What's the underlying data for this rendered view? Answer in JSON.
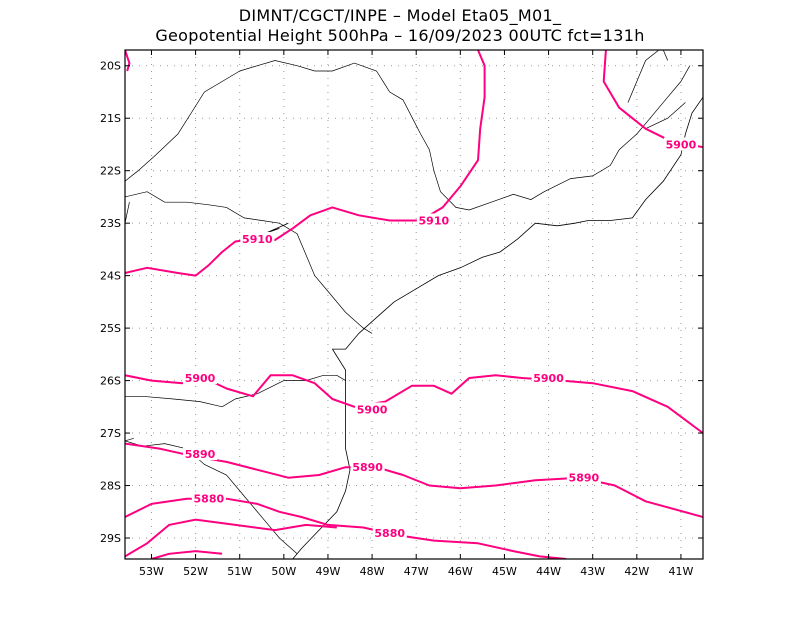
{
  "header": {
    "line1": "DIMNT/CGCT/INPE –   Model Eta05_M01_",
    "line2": "Geopotential Height 500hPa –  16/09/2023 00UTC fct=131h"
  },
  "colors": {
    "contour": "#ff0080",
    "coast": "#000000",
    "grid": "#999999"
  },
  "map": {
    "lon_range": [
      -53.6,
      -40.5
    ],
    "lat_range": [
      -29.4,
      -19.7
    ],
    "lat_ticks": [
      {
        "value": -20,
        "label": "20S"
      },
      {
        "value": -21,
        "label": "21S"
      },
      {
        "value": -22,
        "label": "22S"
      },
      {
        "value": -23,
        "label": "23S"
      },
      {
        "value": -24,
        "label": "24S"
      },
      {
        "value": -25,
        "label": "25S"
      },
      {
        "value": -26,
        "label": "26S"
      },
      {
        "value": -27,
        "label": "27S"
      },
      {
        "value": -28,
        "label": "28S"
      },
      {
        "value": -29,
        "label": "29S"
      }
    ],
    "lon_ticks": [
      {
        "value": -53,
        "label": "53W"
      },
      {
        "value": -52,
        "label": "52W"
      },
      {
        "value": -51,
        "label": "51W"
      },
      {
        "value": -50,
        "label": "50W"
      },
      {
        "value": -49,
        "label": "49W"
      },
      {
        "value": -48,
        "label": "48W"
      },
      {
        "value": -47,
        "label": "47W"
      },
      {
        "value": -46,
        "label": "46W"
      },
      {
        "value": -45,
        "label": "45W"
      },
      {
        "value": -44,
        "label": "44W"
      },
      {
        "value": -43,
        "label": "43W"
      },
      {
        "value": -42,
        "label": "42W"
      },
      {
        "value": -41,
        "label": "41W"
      }
    ]
  },
  "contours": [
    {
      "level": "5910",
      "label_text": "5910",
      "label_lon": -50.6,
      "label_lat": -23.3,
      "points": [
        [
          -53.6,
          -23.95
        ],
        [
          -53.1,
          -23.85
        ],
        [
          -52.4,
          -23.95
        ],
        [
          -52.0,
          -24.0
        ],
        [
          -51.7,
          -23.8
        ],
        [
          -51.4,
          -23.55
        ],
        [
          -51.1,
          -23.35
        ],
        [
          -50.5,
          -23.28
        ],
        [
          -50.2,
          -23.32
        ],
        [
          -49.8,
          -23.1
        ],
        [
          -49.4,
          -22.85
        ],
        [
          -48.9,
          -22.7
        ],
        [
          -48.3,
          -22.85
        ],
        [
          -47.6,
          -22.95
        ],
        [
          -46.9,
          -22.95
        ],
        [
          -46.4,
          -22.7
        ],
        [
          -46.0,
          -22.3
        ],
        [
          -45.6,
          -21.8
        ],
        [
          -45.55,
          -21.2
        ],
        [
          -45.45,
          -20.6
        ],
        [
          -45.45,
          -20.0
        ],
        [
          -45.6,
          -19.7
        ]
      ]
    },
    {
      "level": "5910",
      "label_text": "5910",
      "label_lon": -46.6,
      "label_lat": -22.95,
      "points": []
    },
    {
      "level": "5900",
      "label_text": "5900",
      "label_lon": -41.0,
      "label_lat": -21.5,
      "points": [
        [
          -42.7,
          -19.7
        ],
        [
          -42.75,
          -20.3
        ],
        [
          -42.4,
          -20.8
        ],
        [
          -41.8,
          -21.2
        ],
        [
          -41.2,
          -21.45
        ],
        [
          -40.5,
          -21.55
        ]
      ]
    },
    {
      "level": "5900",
      "label_text": "5900",
      "label_lon": -51.9,
      "label_lat": -25.95,
      "points": [
        [
          -53.6,
          -25.9
        ],
        [
          -53.0,
          -26.0
        ],
        [
          -52.3,
          -26.05
        ],
        [
          -51.8,
          -25.95
        ],
        [
          -51.3,
          -26.15
        ],
        [
          -50.7,
          -26.3
        ],
        [
          -50.3,
          -25.9
        ],
        [
          -49.8,
          -25.9
        ],
        [
          -49.3,
          -26.05
        ],
        [
          -48.9,
          -26.35
        ],
        [
          -48.4,
          -26.5
        ],
        [
          -47.7,
          -26.4
        ],
        [
          -47.1,
          -26.1
        ],
        [
          -46.6,
          -26.1
        ],
        [
          -46.2,
          -26.25
        ],
        [
          -45.8,
          -25.95
        ],
        [
          -45.2,
          -25.9
        ],
        [
          -44.6,
          -25.95
        ],
        [
          -43.7,
          -26.0
        ],
        [
          -43.0,
          -26.05
        ],
        [
          -42.1,
          -26.2
        ],
        [
          -41.3,
          -26.5
        ],
        [
          -40.5,
          -27.0
        ]
      ]
    },
    {
      "level": "5900",
      "label_text": "5900",
      "label_lon": -48.0,
      "label_lat": -26.55,
      "points": []
    },
    {
      "level": "5900",
      "label_text": "5900",
      "label_lon": -44.0,
      "label_lat": -25.95,
      "points": []
    },
    {
      "level": "5890",
      "label_text": "5890",
      "label_lon": -51.9,
      "label_lat": -27.4,
      "points": [
        [
          -53.6,
          -27.2
        ],
        [
          -52.8,
          -27.3
        ],
        [
          -52.0,
          -27.45
        ],
        [
          -51.3,
          -27.55
        ],
        [
          -50.6,
          -27.7
        ],
        [
          -49.9,
          -27.85
        ],
        [
          -49.2,
          -27.8
        ],
        [
          -48.6,
          -27.65
        ],
        [
          -47.9,
          -27.65
        ],
        [
          -47.3,
          -27.8
        ],
        [
          -46.7,
          -28.0
        ],
        [
          -46.0,
          -28.05
        ],
        [
          -45.2,
          -28.0
        ],
        [
          -44.3,
          -27.9
        ],
        [
          -43.3,
          -27.85
        ],
        [
          -42.5,
          -28.0
        ],
        [
          -41.8,
          -28.3
        ],
        [
          -40.5,
          -28.6
        ]
      ]
    },
    {
      "level": "5890",
      "label_text": "5890",
      "label_lon": -48.1,
      "label_lat": -27.65,
      "points": []
    },
    {
      "level": "5890",
      "label_text": "5890",
      "label_lon": -43.2,
      "label_lat": -27.85,
      "points": []
    },
    {
      "level": "5880",
      "label_text": "5880",
      "label_lon": -51.7,
      "label_lat": -28.25,
      "points": [
        [
          -53.6,
          -28.6
        ],
        [
          -53.0,
          -28.35
        ],
        [
          -52.2,
          -28.25
        ],
        [
          -51.3,
          -28.25
        ],
        [
          -50.6,
          -28.35
        ],
        [
          -50.1,
          -28.5
        ],
        [
          -49.6,
          -28.6
        ],
        [
          -49.0,
          -28.75
        ],
        [
          -48.2,
          -28.8
        ],
        [
          -47.4,
          -28.95
        ],
        [
          -46.6,
          -29.05
        ],
        [
          -45.6,
          -29.1
        ],
        [
          -44.8,
          -29.25
        ],
        [
          -44.2,
          -29.35
        ],
        [
          -43.6,
          -29.4
        ]
      ]
    },
    {
      "level": "5880",
      "label_text": "5880",
      "label_lon": -47.6,
      "label_lat": -28.9,
      "points": []
    }
  ],
  "extra_contours": [
    [
      [
        -53.6,
        -29.35
      ],
      [
        -53.1,
        -29.1
      ],
      [
        -52.6,
        -28.75
      ],
      [
        -52.0,
        -28.65
      ],
      [
        -51.1,
        -28.75
      ],
      [
        -50.2,
        -28.85
      ],
      [
        -49.5,
        -28.75
      ],
      [
        -48.8,
        -28.8
      ]
    ],
    [
      [
        -53.0,
        -29.4
      ],
      [
        -52.6,
        -29.3
      ],
      [
        -52.0,
        -29.25
      ],
      [
        -51.4,
        -29.3
      ]
    ],
    [
      [
        -53.6,
        -19.7
      ],
      [
        -53.5,
        -19.95
      ],
      [
        -53.55,
        -20.1
      ]
    ]
  ],
  "coastlines": [
    [
      [
        -49.9,
        -23.0
      ],
      [
        -50.3,
        -23.15
      ],
      [
        -50.6,
        -23.25
      ],
      [
        -50.1,
        -23.1
      ]
    ],
    [
      [
        -48.9,
        -25.4
      ],
      [
        -48.6,
        -25.4
      ],
      [
        -48.3,
        -25.1
      ],
      [
        -47.9,
        -24.8
      ],
      [
        -47.5,
        -24.5
      ],
      [
        -47.0,
        -24.25
      ],
      [
        -46.5,
        -24.0
      ],
      [
        -46.0,
        -23.85
      ],
      [
        -45.5,
        -23.65
      ],
      [
        -45.1,
        -23.55
      ],
      [
        -44.7,
        -23.3
      ],
      [
        -44.3,
        -23.0
      ],
      [
        -43.8,
        -23.05
      ],
      [
        -43.4,
        -23.0
      ],
      [
        -43.1,
        -22.95
      ],
      [
        -42.6,
        -22.95
      ],
      [
        -42.1,
        -22.9
      ],
      [
        -41.8,
        -22.55
      ],
      [
        -41.4,
        -22.2
      ],
      [
        -41.0,
        -21.7
      ],
      [
        -40.9,
        -21.3
      ],
      [
        -40.75,
        -20.9
      ],
      [
        -40.5,
        -20.6
      ]
    ],
    [
      [
        -48.9,
        -25.4
      ],
      [
        -48.6,
        -25.8
      ],
      [
        -48.6,
        -26.3
      ],
      [
        -48.6,
        -26.8
      ],
      [
        -48.6,
        -27.3
      ],
      [
        -48.5,
        -27.7
      ],
      [
        -48.6,
        -28.1
      ],
      [
        -48.8,
        -28.5
      ],
      [
        -49.2,
        -28.85
      ],
      [
        -49.6,
        -29.2
      ],
      [
        -49.8,
        -29.4
      ]
    ]
  ],
  "borders": [
    [
      [
        -53.6,
        -22.5
      ],
      [
        -53.1,
        -22.4
      ],
      [
        -52.7,
        -22.6
      ],
      [
        -52.2,
        -22.6
      ],
      [
        -51.7,
        -22.65
      ],
      [
        -51.3,
        -22.7
      ],
      [
        -50.9,
        -22.9
      ],
      [
        -50.5,
        -22.95
      ],
      [
        -50.1,
        -23.0
      ],
      [
        -49.7,
        -23.2
      ],
      [
        -49.5,
        -23.6
      ],
      [
        -49.3,
        -24.0
      ],
      [
        -49.0,
        -24.3
      ],
      [
        -48.6,
        -24.7
      ],
      [
        -48.2,
        -25.0
      ],
      [
        -48.0,
        -25.1
      ]
    ],
    [
      [
        -53.6,
        -23.0
      ],
      [
        -53.5,
        -22.6
      ]
    ],
    [
      [
        -51.0,
        -20.1
      ],
      [
        -50.6,
        -20.0
      ],
      [
        -50.2,
        -19.9
      ],
      [
        -49.7,
        -20.0
      ],
      [
        -49.3,
        -20.1
      ],
      [
        -48.9,
        -20.1
      ],
      [
        -48.4,
        -19.95
      ],
      [
        -47.9,
        -20.1
      ],
      [
        -47.6,
        -20.5
      ],
      [
        -47.3,
        -20.65
      ],
      [
        -46.9,
        -21.3
      ],
      [
        -46.7,
        -21.6
      ],
      [
        -46.6,
        -22.0
      ],
      [
        -46.45,
        -22.4
      ],
      [
        -46.1,
        -22.7
      ],
      [
        -45.8,
        -22.75
      ],
      [
        -45.3,
        -22.6
      ],
      [
        -44.8,
        -22.45
      ],
      [
        -44.4,
        -22.55
      ],
      [
        -44.1,
        -22.4
      ],
      [
        -43.5,
        -22.15
      ],
      [
        -43.0,
        -22.1
      ],
      [
        -42.6,
        -21.9
      ],
      [
        -42.4,
        -21.6
      ],
      [
        -42.0,
        -21.3
      ],
      [
        -41.7,
        -21.0
      ],
      [
        -41.3,
        -20.6
      ],
      [
        -41.0,
        -20.3
      ],
      [
        -40.8,
        -20.0
      ]
    ],
    [
      [
        -51.0,
        -20.1
      ],
      [
        -51.4,
        -20.3
      ],
      [
        -51.8,
        -20.5
      ],
      [
        -52.1,
        -20.9
      ],
      [
        -52.4,
        -21.3
      ],
      [
        -52.9,
        -21.7
      ],
      [
        -53.3,
        -22.0
      ],
      [
        -53.6,
        -22.2
      ]
    ],
    [
      [
        -53.6,
        -26.3
      ],
      [
        -53.2,
        -26.3
      ],
      [
        -52.5,
        -26.35
      ],
      [
        -51.9,
        -26.4
      ],
      [
        -51.4,
        -26.5
      ],
      [
        -51.1,
        -26.35
      ],
      [
        -50.6,
        -26.25
      ],
      [
        -50.0,
        -26.0
      ],
      [
        -49.5,
        -26.0
      ],
      [
        -49.1,
        -25.9
      ],
      [
        -48.8,
        -25.9
      ],
      [
        -48.6,
        -26.0
      ]
    ],
    [
      [
        -53.6,
        -27.15
      ],
      [
        -53.2,
        -27.25
      ],
      [
        -52.7,
        -27.2
      ],
      [
        -52.2,
        -27.3
      ],
      [
        -51.8,
        -27.6
      ],
      [
        -51.3,
        -27.8
      ],
      [
        -50.9,
        -28.2
      ],
      [
        -50.4,
        -28.7
      ],
      [
        -50.1,
        -29.0
      ],
      [
        -49.7,
        -29.3
      ]
    ],
    [
      [
        -53.6,
        -27.15
      ],
      [
        -53.4,
        -27.1
      ]
    ],
    [
      [
        -41.8,
        -21.2
      ],
      [
        -41.3,
        -21.0
      ],
      [
        -40.9,
        -20.7
      ]
    ],
    [
      [
        -41.3,
        -19.9
      ],
      [
        -41.4,
        -19.7
      ]
    ],
    [
      [
        -42.2,
        -20.7
      ],
      [
        -42.0,
        -20.3
      ],
      [
        -41.8,
        -19.9
      ],
      [
        -41.5,
        -19.7
      ]
    ]
  ]
}
